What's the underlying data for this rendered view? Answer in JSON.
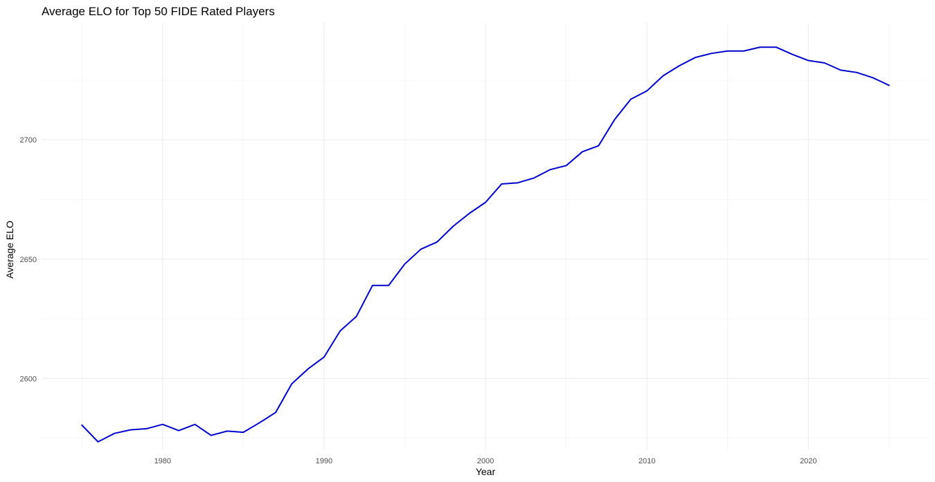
{
  "chart_data": {
    "type": "line",
    "title": "Average ELO for Top 50 FIDE Rated Players",
    "xlabel": "Year",
    "ylabel": "Average ELO",
    "xlim": [
      1972.5,
      2027.5
    ],
    "ylim": [
      2570,
      2749
    ],
    "x_ticks": [
      1980,
      1990,
      2000,
      2010,
      2020
    ],
    "y_ticks": [
      2600,
      2650,
      2700
    ],
    "grid": true,
    "legend": "none",
    "series": [
      {
        "color": "#0000CD",
        "x": [
          1975,
          1976,
          1977,
          1978,
          1979,
          1980,
          1981,
          1982,
          1983,
          1984,
          1985,
          1986,
          1987,
          1988,
          1989,
          1990,
          1991,
          1992,
          1993,
          1994,
          1995,
          1996,
          1997,
          1998,
          1999,
          2000,
          2001,
          2002,
          2003,
          2004,
          2005,
          2006,
          2007,
          2008,
          2009,
          2010,
          2011,
          2012,
          2013,
          2014,
          2015,
          2016,
          2017,
          2018,
          2019,
          2020,
          2021,
          2022,
          2023,
          2024,
          2025
        ],
        "y": [
          2580.5,
          2573.5,
          2577.0,
          2578.5,
          2579.0,
          2580.8,
          2578.2,
          2580.8,
          2576.2,
          2578.0,
          2577.5,
          2581.5,
          2585.8,
          2597.8,
          2604.0,
          2609.0,
          2620.0,
          2626.0,
          2639.0,
          2639.0,
          2648.0,
          2654.2,
          2657.2,
          2663.8,
          2669.2,
          2673.8,
          2681.5,
          2682.0,
          2684.0,
          2687.5,
          2689.2,
          2695.0,
          2697.5,
          2708.5,
          2717.0,
          2720.5,
          2726.8,
          2731.0,
          2734.5,
          2736.2,
          2737.2,
          2737.2,
          2738.8,
          2738.8,
          2735.8,
          2733.2,
          2732.2,
          2729.2,
          2728.2,
          2726.0,
          2722.8
        ]
      }
    ]
  }
}
